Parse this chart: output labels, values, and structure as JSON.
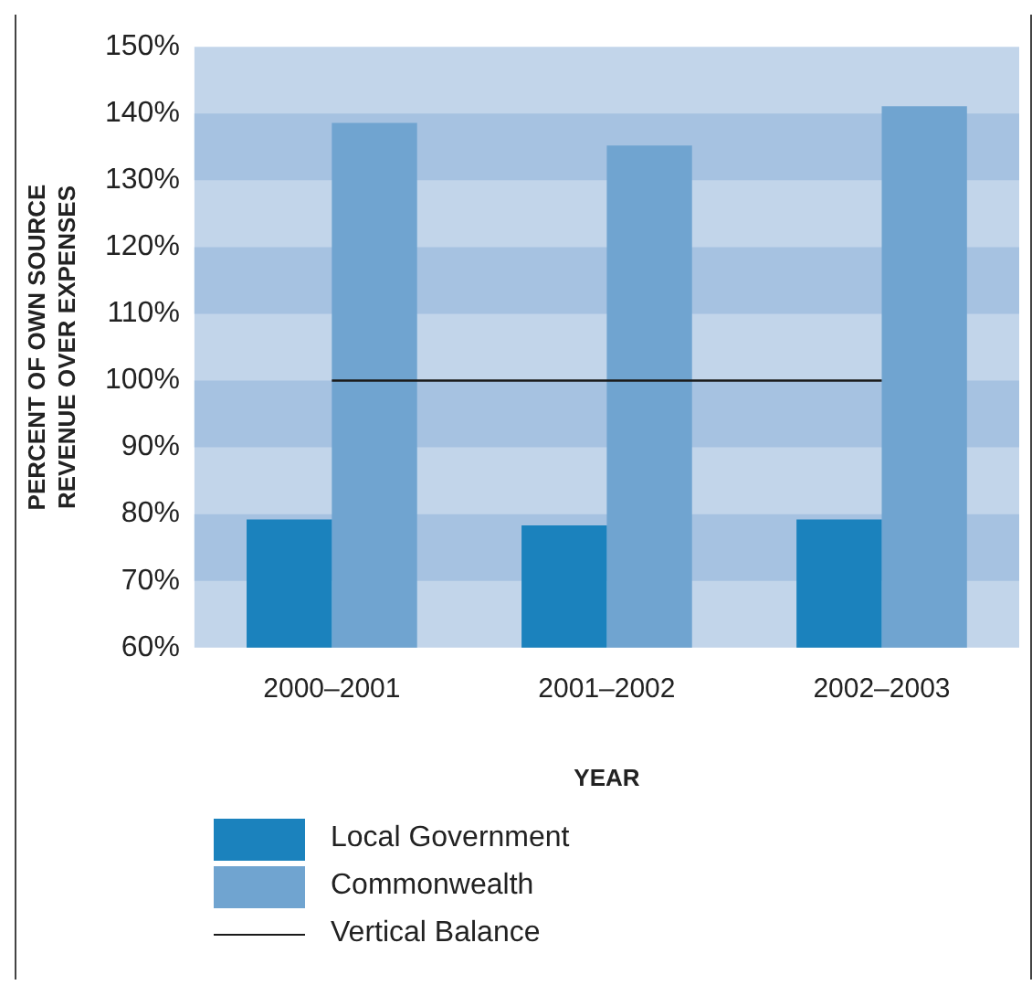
{
  "chart_data": {
    "type": "bar",
    "xlabel": "YEAR",
    "ylabel": "PERCENT OF OWN SOURCE\nREVENUE OVER EXPENSES",
    "categories": [
      "2000–2001",
      "2001–2002",
      "2002–2003"
    ],
    "series": [
      {
        "name": "Local Government",
        "color": "#1b82bd",
        "values": [
          79.2,
          78.3,
          79.2
        ]
      },
      {
        "name": "Commonwealth",
        "color": "#70a4d0",
        "values": [
          138.6,
          135.2,
          141.1
        ]
      },
      {
        "name": "Vertical Balance",
        "type": "line",
        "color": "#1a1a1a",
        "values": [
          100,
          100,
          100
        ],
        "marker": "none"
      }
    ],
    "ylim": [
      60,
      150
    ],
    "yticks": [
      {
        "value": 60,
        "label": "60%"
      },
      {
        "value": 70,
        "label": "70%"
      },
      {
        "value": 80,
        "label": "80%"
      },
      {
        "value": 90,
        "label": "90%"
      },
      {
        "value": 100,
        "label": "100%"
      },
      {
        "value": 110,
        "label": "110%"
      },
      {
        "value": 120,
        "label": "120%"
      },
      {
        "value": 130,
        "label": "130%"
      },
      {
        "value": 140,
        "label": "140%"
      },
      {
        "value": 150,
        "label": "150%"
      }
    ],
    "bands": [
      {
        "axis": "y",
        "from": 60,
        "to": 150,
        "color": "#c2d5ea"
      },
      {
        "axis": "y",
        "from": 70,
        "to": 80,
        "color": "#a6c2e1"
      },
      {
        "axis": "y",
        "from": 90,
        "to": 100,
        "color": "#a6c2e1"
      },
      {
        "axis": "y",
        "from": 110,
        "to": 120,
        "color": "#a6c2e1"
      },
      {
        "axis": "y",
        "from": 130,
        "to": 140,
        "color": "#a6c2e1"
      }
    ],
    "legend": "bottom left"
  }
}
